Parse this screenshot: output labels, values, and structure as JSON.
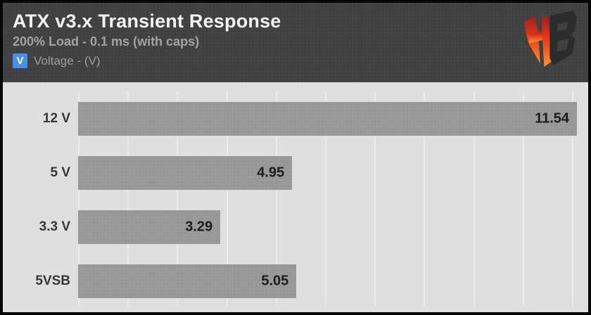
{
  "header": {
    "title": "ATX v3.x Transient Response",
    "subtitle": "200% Load - 0.1 ms (with caps)",
    "legend": {
      "symbol": "V",
      "label": "Voltage - (V)"
    },
    "logo_name": "Hardware Busters"
  },
  "chart_data": {
    "type": "bar",
    "orientation": "horizontal",
    "title": "ATX v3.x Transient Response",
    "subtitle": "200% Load - 0.1 ms (with caps)",
    "legend_entries": [
      "Voltage - (V)"
    ],
    "categories": [
      "12 V",
      "5 V",
      "3.3 V",
      "5VSB"
    ],
    "values": [
      11.54,
      4.95,
      3.29,
      5.05
    ],
    "value_labels": [
      "11.54",
      "4.95",
      "3.29",
      "5.05"
    ],
    "xlabel": "",
    "ylabel": "",
    "xlim": [
      0,
      11.8
    ],
    "grid": "vertical-gridlines-on",
    "legend_position": "top-left-header",
    "colors": {
      "header_bg": "#404040",
      "title": "#f4f4f4",
      "subtitle": "#a3a3a3",
      "legend_text": "#9d9d9d",
      "accent_blue": "#4a90e2",
      "plot_bg": "#dfdfdf",
      "gridline": "#ebebeb",
      "bar": "#9a9a9a",
      "category_text": "#373737",
      "value_text": "#1c1c1c",
      "logo_red_top": "#9e1b1b",
      "logo_red_mid": "#e03a1c",
      "logo_orange": "#ff9233",
      "logo_dark": "#2c2c2c"
    }
  }
}
